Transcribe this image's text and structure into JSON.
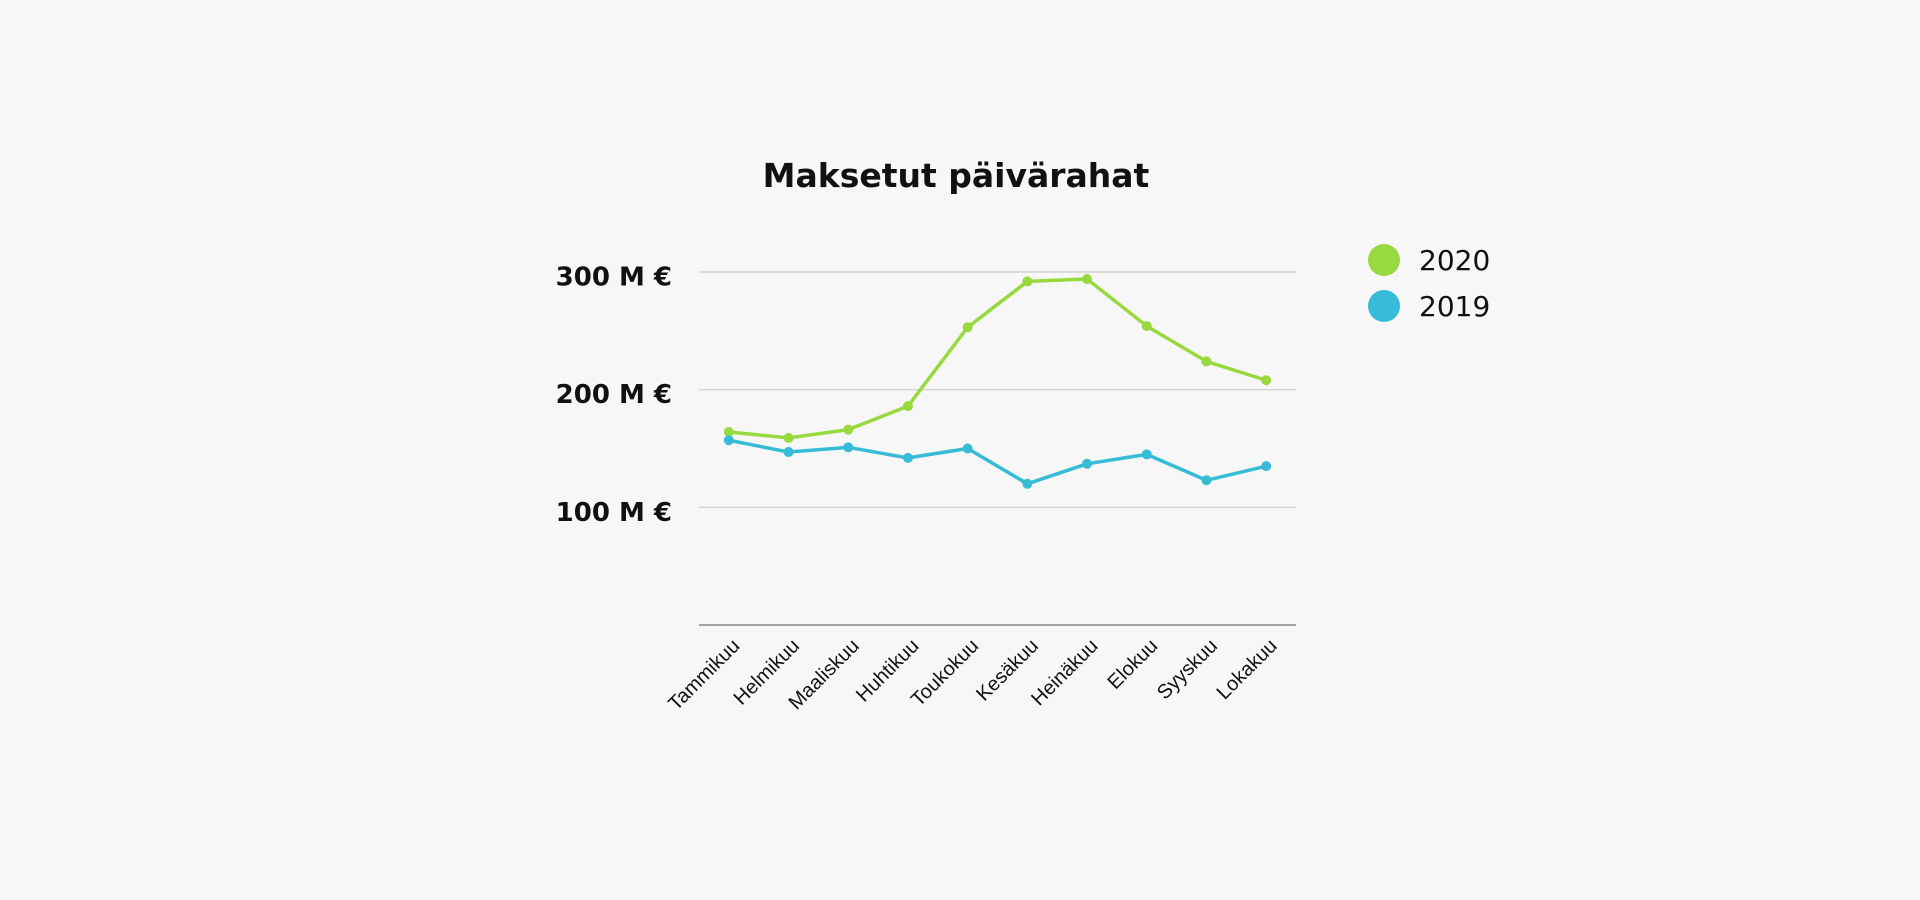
{
  "chart_data": {
    "type": "line",
    "title": "Maksetut päivärahat",
    "categories": [
      "Tammikuu",
      "Helmikuu",
      "Maaliskuu",
      "Huhtikuu",
      "Toukokuu",
      "Kesäkuu",
      "Heinäkuu",
      "Elokuu",
      "Syyskuu",
      "Lokakuu"
    ],
    "series": [
      {
        "name": "2020",
        "color": "#97d93f",
        "values": [
          164,
          159,
          166,
          186,
          253,
          292,
          294,
          254,
          224,
          208
        ]
      },
      {
        "name": "2019",
        "color": "#36bcd6",
        "values": [
          157,
          147,
          151,
          142,
          150,
          120,
          137,
          145,
          123,
          135
        ]
      }
    ],
    "ylim": [
      0,
      300
    ],
    "yticks": [
      {
        "value": 100,
        "label": "100 M €"
      },
      {
        "value": 200,
        "label": "200 M €"
      },
      {
        "value": 300,
        "label": "300 M €"
      }
    ],
    "grid": true,
    "legend": "right"
  }
}
